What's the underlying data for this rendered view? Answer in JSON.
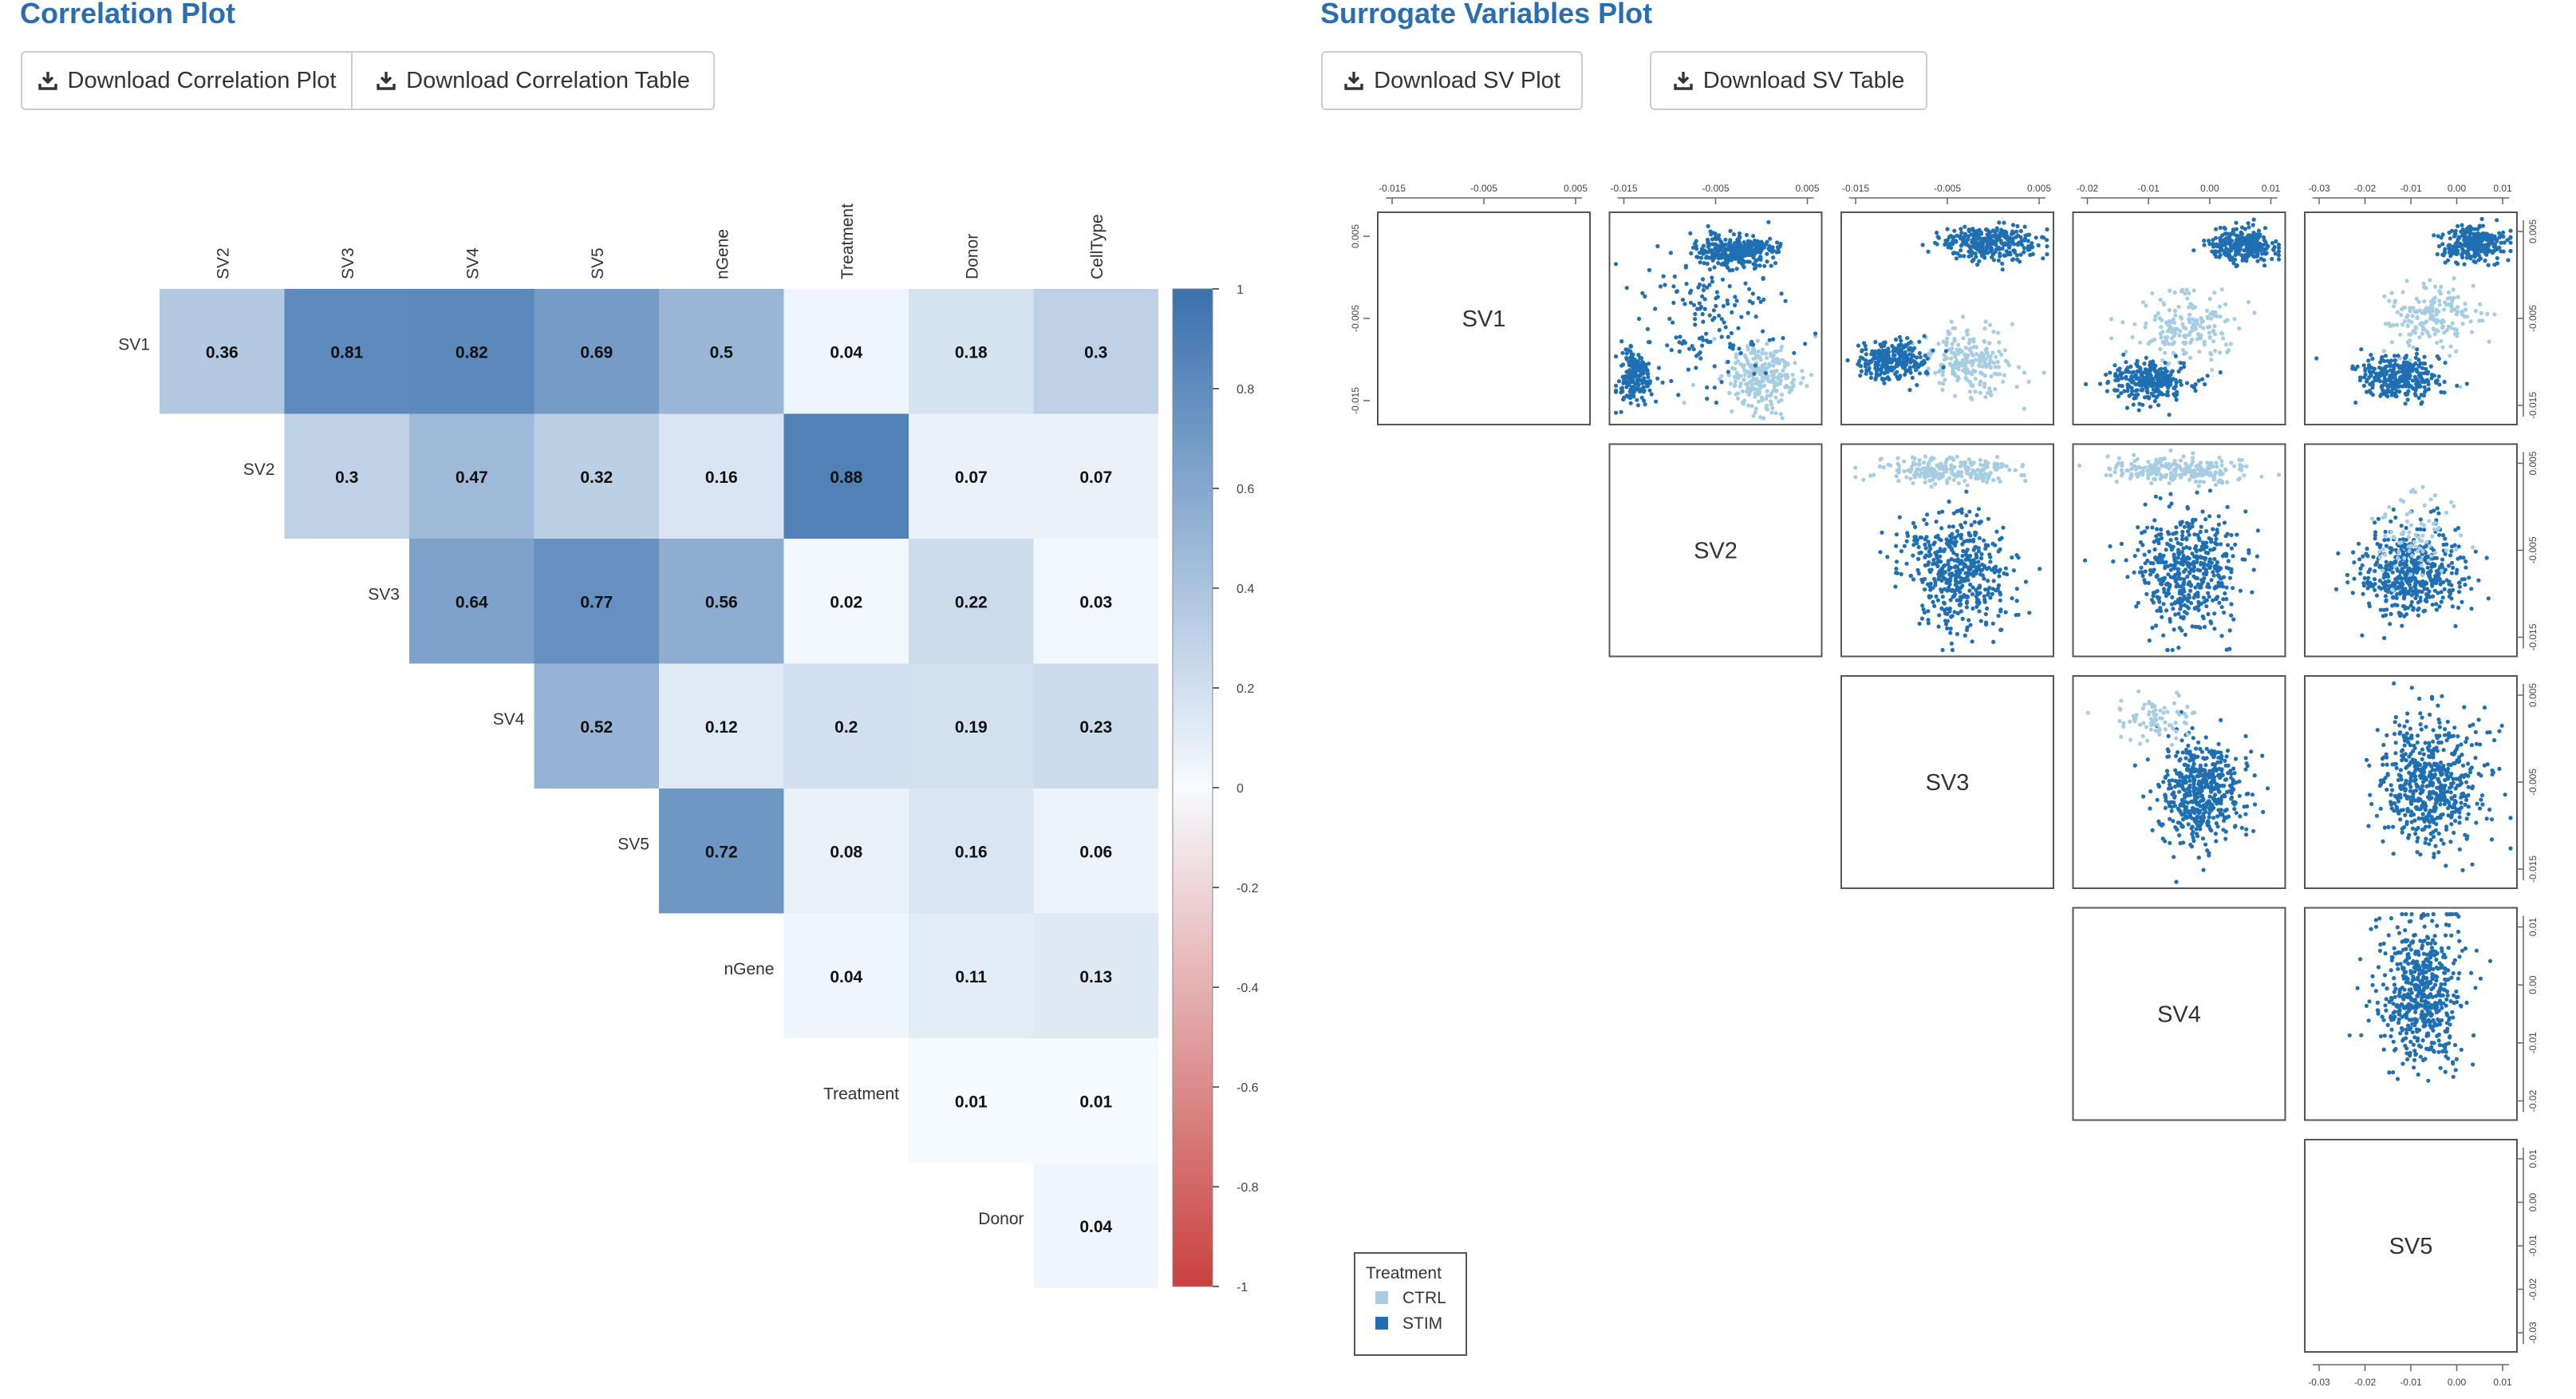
{
  "correlation_panel": {
    "title": "Correlation Plot",
    "buttons": {
      "download_plot": "Download Correlation Plot",
      "download_table": "Download Correlation Table"
    }
  },
  "sv_panel": {
    "title": "Surrogate Variables Plot",
    "buttons": {
      "download_plot": "Download SV Plot",
      "download_table": "Download SV Table"
    }
  },
  "icons": {
    "download": "download-icon"
  },
  "colors": {
    "title": "#2a6eaf",
    "heat_positive": "#3a70ad",
    "heat_negative": "#c9413f",
    "ctrl": "#a6cde2",
    "stim": "#1f6fb2"
  },
  "chart_data": [
    {
      "type": "heatmap",
      "title": "",
      "col_labels": [
        "SV2",
        "SV3",
        "SV4",
        "SV5",
        "nGene",
        "Treatment",
        "Donor",
        "CellType"
      ],
      "row_labels": [
        "SV1",
        "SV2",
        "SV3",
        "SV4",
        "SV5",
        "nGene",
        "Treatment",
        "Donor"
      ],
      "matrix": [
        [
          0.36,
          0.81,
          0.82,
          0.69,
          0.5,
          0.04,
          0.18,
          0.3
        ],
        [
          null,
          0.3,
          0.47,
          0.32,
          0.16,
          0.88,
          0.07,
          0.07
        ],
        [
          null,
          null,
          0.64,
          0.77,
          0.56,
          0.02,
          0.22,
          0.03
        ],
        [
          null,
          null,
          null,
          0.52,
          0.12,
          0.2,
          0.19,
          0.23
        ],
        [
          null,
          null,
          null,
          null,
          0.72,
          0.08,
          0.16,
          0.06
        ],
        [
          null,
          null,
          null,
          null,
          null,
          0.04,
          0.11,
          0.13
        ],
        [
          null,
          null,
          null,
          null,
          null,
          null,
          0.01,
          0.01
        ],
        [
          null,
          null,
          null,
          null,
          null,
          null,
          null,
          0.04
        ]
      ],
      "colorbar": {
        "range": [
          -1,
          1
        ],
        "ticks": [
          "1",
          "0.8",
          "0.6",
          "0.4",
          "0.2",
          "0",
          "-0.2",
          "-0.4",
          "-0.6",
          "-0.8",
          "-1"
        ]
      }
    },
    {
      "type": "scatter",
      "title": "",
      "variables": [
        "SV1",
        "SV2",
        "SV3",
        "SV4",
        "SV5"
      ],
      "layout": "upper-triangle pairs matrix",
      "top_axis_ticks": [
        [
          "-0.015",
          "-0.005",
          "0.005"
        ],
        [
          "-0.015",
          "-0.005",
          "0.005"
        ],
        [
          "-0.015",
          "-0.005",
          "0.005"
        ],
        [
          "-0.02",
          "-0.01",
          "0.00",
          "0.01"
        ],
        [
          "-0.03",
          "-0.02",
          "-0.01",
          "0.00",
          "0.01"
        ]
      ],
      "left_axis_ticks_sv1": [
        "0.005",
        "-0.005",
        "-0.015"
      ],
      "right_axis_ticks": [
        [
          "0.005",
          "-0.005",
          "-0.015"
        ],
        [
          "0.005",
          "-0.005",
          "-0.015"
        ],
        [
          "0.005",
          "-0.005",
          "-0.015"
        ],
        [
          "0.01",
          "0.00",
          "-0.01",
          "-0.02"
        ],
        [
          "0.01",
          "0.00",
          "-0.01",
          "-0.02",
          "-0.03"
        ]
      ],
      "bottom_axis_ticks_sv5": [
        "-0.03",
        "-0.02",
        "-0.01",
        "0.00",
        "0.01"
      ],
      "legend": {
        "title": "Treatment",
        "entries": [
          "CTRL",
          "STIM"
        ],
        "placement": "bottom-left"
      }
    }
  ]
}
